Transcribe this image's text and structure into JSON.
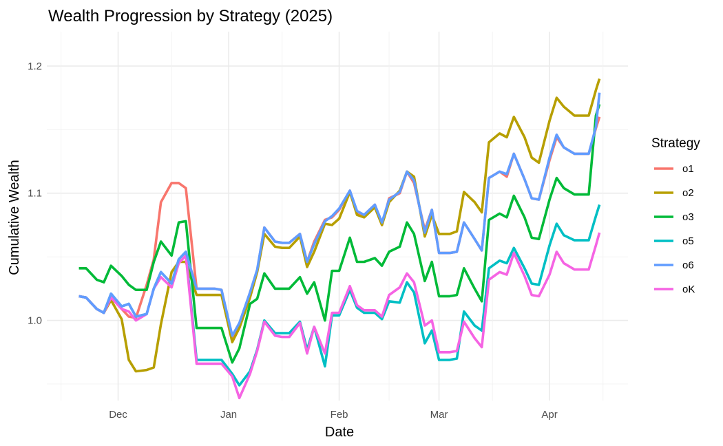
{
  "chart_data": {
    "type": "line",
    "title": "Wealth Progression by Strategy (2025)",
    "xlabel": "Date",
    "ylabel": "Cumulative Wealth",
    "x_ticks": [
      "Dec",
      "Jan",
      "Feb",
      "Mar",
      "Apr"
    ],
    "y_ticks": [
      "1.0",
      "1.1",
      "1.2"
    ],
    "ylim": [
      0.937,
      1.227
    ],
    "grid": true,
    "legend": {
      "title": "Strategy",
      "position": "right"
    },
    "x": [
      "2024-11-20",
      "2024-11-22",
      "2024-11-25",
      "2024-11-27",
      "2024-11-29",
      "2024-12-02",
      "2024-12-04",
      "2024-12-06",
      "2024-12-09",
      "2024-12-11",
      "2024-12-13",
      "2024-12-16",
      "2024-12-18",
      "2024-12-20",
      "2024-12-23",
      "2024-12-26",
      "2024-12-28",
      "2024-12-30",
      "2025-01-02",
      "2025-01-04",
      "2025-01-07",
      "2025-01-09",
      "2025-01-11",
      "2025-01-14",
      "2025-01-16",
      "2025-01-18",
      "2025-01-21",
      "2025-01-23",
      "2025-01-25",
      "2025-01-28",
      "2025-01-30",
      "2025-02-01",
      "2025-02-04",
      "2025-02-06",
      "2025-02-08",
      "2025-02-11",
      "2025-02-13",
      "2025-02-15",
      "2025-02-18",
      "2025-02-20",
      "2025-02-22",
      "2025-02-25",
      "2025-02-27",
      "2025-03-01",
      "2025-03-04",
      "2025-03-06",
      "2025-03-08",
      "2025-03-11",
      "2025-03-13",
      "2025-03-15",
      "2025-03-18",
      "2025-03-20",
      "2025-03-22",
      "2025-03-25",
      "2025-03-27",
      "2025-03-29",
      "2025-04-01",
      "2025-04-03",
      "2025-04-05",
      "2025-04-08",
      "2025-04-10",
      "2025-04-12",
      "2025-04-14",
      "2025-04-15"
    ],
    "series": [
      {
        "name": "o1",
        "color": "#F8766D",
        "values": [
          1.019,
          1.018,
          1.009,
          1.006,
          1.019,
          1.009,
          1.003,
          1.002,
          1.028,
          1.048,
          1.093,
          1.108,
          1.108,
          1.104,
          1.025,
          1.025,
          1.025,
          1.024,
          0.986,
          0.996,
          1.022,
          1.039,
          1.073,
          1.062,
          1.061,
          1.061,
          1.068,
          1.046,
          1.062,
          1.079,
          1.081,
          1.087,
          1.102,
          1.085,
          1.083,
          1.091,
          1.075,
          1.096,
          1.1,
          1.117,
          1.108,
          1.071,
          1.087,
          1.053,
          1.053,
          1.054,
          1.077,
          1.064,
          1.055,
          1.112,
          1.117,
          1.113,
          1.131,
          1.111,
          1.096,
          1.095,
          1.126,
          1.144,
          1.136,
          1.131,
          1.131,
          1.131,
          1.151,
          1.16
        ]
      },
      {
        "name": "o2",
        "color": "#B79F00",
        "values": [
          1.019,
          1.018,
          1.009,
          1.006,
          1.016,
          1.001,
          0.969,
          0.96,
          0.961,
          0.963,
          0.997,
          1.038,
          1.046,
          1.046,
          1.02,
          1.02,
          1.02,
          1.02,
          0.983,
          0.994,
          1.018,
          1.038,
          1.068,
          1.058,
          1.057,
          1.057,
          1.066,
          1.042,
          1.054,
          1.076,
          1.075,
          1.08,
          1.101,
          1.083,
          1.081,
          1.089,
          1.075,
          1.093,
          1.102,
          1.117,
          1.113,
          1.066,
          1.083,
          1.068,
          1.068,
          1.07,
          1.101,
          1.093,
          1.085,
          1.14,
          1.147,
          1.144,
          1.16,
          1.144,
          1.128,
          1.124,
          1.157,
          1.175,
          1.168,
          1.161,
          1.161,
          1.161,
          1.181,
          1.19
        ]
      },
      {
        "name": "o3",
        "color": "#00BA38",
        "values": [
          1.041,
          1.041,
          1.032,
          1.03,
          1.043,
          1.035,
          1.028,
          1.024,
          1.024,
          1.046,
          1.062,
          1.051,
          1.077,
          1.078,
          0.994,
          0.994,
          0.994,
          0.994,
          0.967,
          0.978,
          1.013,
          1.017,
          1.037,
          1.025,
          1.025,
          1.025,
          1.034,
          1.021,
          1.03,
          1.0,
          1.039,
          1.039,
          1.065,
          1.046,
          1.046,
          1.049,
          1.043,
          1.054,
          1.058,
          1.077,
          1.068,
          1.031,
          1.046,
          1.019,
          1.019,
          1.02,
          1.041,
          1.025,
          1.015,
          1.079,
          1.084,
          1.081,
          1.098,
          1.081,
          1.065,
          1.064,
          1.095,
          1.112,
          1.104,
          1.099,
          1.099,
          1.099,
          1.161,
          1.17
        ]
      },
      {
        "name": "o5",
        "color": "#00BFC4",
        "values": [
          1.019,
          1.018,
          1.009,
          1.006,
          1.021,
          1.011,
          1.013,
          1.003,
          1.005,
          1.025,
          1.038,
          1.029,
          1.048,
          1.054,
          0.969,
          0.969,
          0.969,
          0.969,
          0.958,
          0.949,
          0.96,
          0.977,
          1.0,
          0.99,
          0.99,
          0.99,
          0.999,
          0.977,
          0.995,
          0.964,
          1.004,
          1.004,
          1.024,
          1.01,
          1.006,
          1.006,
          1.001,
          1.015,
          1.014,
          1.03,
          1.022,
          0.982,
          0.992,
          0.969,
          0.969,
          0.97,
          1.007,
          0.996,
          0.992,
          1.041,
          1.047,
          1.045,
          1.057,
          1.041,
          1.029,
          1.028,
          1.059,
          1.076,
          1.067,
          1.063,
          1.063,
          1.063,
          1.082,
          1.091
        ]
      },
      {
        "name": "o6",
        "color": "#619CFF",
        "values": [
          1.019,
          1.018,
          1.009,
          1.006,
          1.021,
          1.011,
          1.013,
          1.003,
          1.005,
          1.025,
          1.038,
          1.029,
          1.048,
          1.054,
          1.025,
          1.025,
          1.025,
          1.024,
          0.988,
          0.998,
          1.022,
          1.04,
          1.073,
          1.062,
          1.061,
          1.061,
          1.068,
          1.046,
          1.06,
          1.078,
          1.082,
          1.088,
          1.102,
          1.086,
          1.083,
          1.091,
          1.077,
          1.095,
          1.101,
          1.117,
          1.11,
          1.069,
          1.087,
          1.053,
          1.053,
          1.054,
          1.077,
          1.064,
          1.055,
          1.112,
          1.117,
          1.115,
          1.131,
          1.111,
          1.096,
          1.095,
          1.128,
          1.146,
          1.136,
          1.131,
          1.131,
          1.131,
          1.152,
          1.179
        ]
      },
      {
        "name": "oK",
        "color": "#F564E3",
        "values": [
          1.019,
          1.018,
          1.009,
          1.006,
          1.018,
          1.009,
          1.007,
          1.0,
          1.005,
          1.025,
          1.034,
          1.026,
          1.045,
          1.051,
          0.966,
          0.966,
          0.966,
          0.966,
          0.956,
          0.939,
          0.958,
          0.976,
          0.999,
          0.988,
          0.987,
          0.987,
          0.998,
          0.974,
          0.995,
          0.974,
          1.006,
          1.006,
          1.027,
          1.012,
          1.008,
          1.008,
          1.003,
          1.02,
          1.026,
          1.037,
          1.03,
          0.996,
          1.0,
          0.975,
          0.975,
          0.976,
          0.999,
          0.986,
          0.979,
          1.032,
          1.038,
          1.036,
          1.053,
          1.035,
          1.02,
          1.019,
          1.036,
          1.054,
          1.045,
          1.04,
          1.04,
          1.04,
          1.059,
          1.069
        ]
      }
    ]
  }
}
